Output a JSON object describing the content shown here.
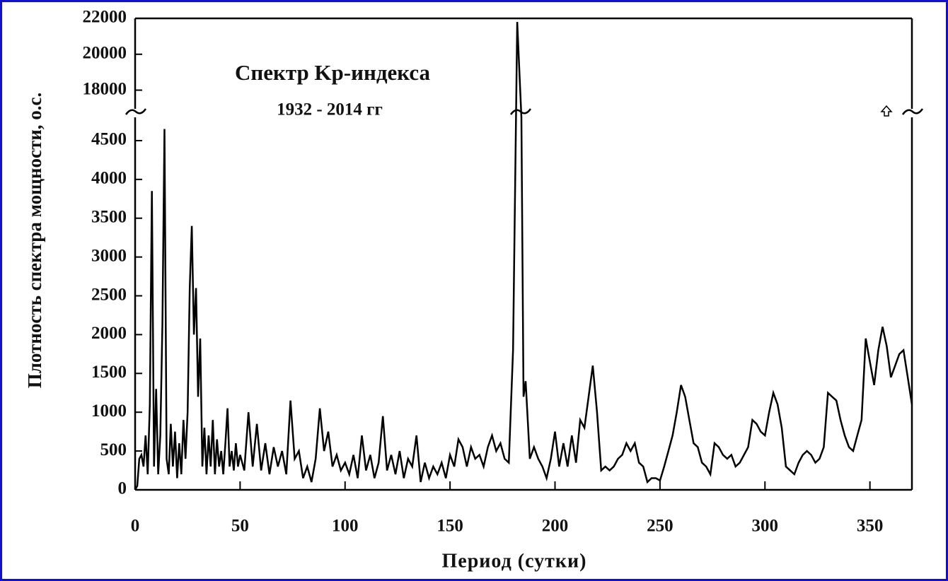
{
  "chart_data": {
    "type": "line",
    "title": "Спектр Kp-индекса",
    "subtitle": "1932 - 2014 гг",
    "x_label": "Период (сутки)",
    "y_label": "Плотность спектра мощности, о.с.",
    "xlim": [
      0,
      370
    ],
    "xticks": [
      0,
      50,
      100,
      150,
      200,
      250,
      300,
      350
    ],
    "ylim": [
      0,
      22000
    ],
    "ybreak": [
      4800,
      16800
    ],
    "yticks": [
      0,
      500,
      1000,
      1500,
      2000,
      2500,
      3000,
      3500,
      4000,
      4500,
      18000,
      20000,
      22000
    ],
    "color": "#000000",
    "x": [
      0,
      1,
      2,
      3,
      4,
      5,
      6,
      7,
      8,
      9,
      10,
      11,
      12,
      13,
      14,
      15,
      16,
      17,
      18,
      19,
      20,
      21,
      22,
      23,
      24,
      25,
      26,
      27,
      28,
      29,
      30,
      31,
      32,
      33,
      34,
      35,
      36,
      37,
      38,
      39,
      40,
      41,
      42,
      43,
      44,
      45,
      46,
      47,
      48,
      49,
      50,
      52,
      54,
      56,
      58,
      60,
      62,
      64,
      66,
      68,
      70,
      72,
      74,
      76,
      78,
      80,
      82,
      84,
      86,
      88,
      90,
      92,
      94,
      96,
      98,
      100,
      102,
      104,
      106,
      108,
      110,
      112,
      114,
      116,
      118,
      120,
      122,
      124,
      126,
      128,
      130,
      132,
      134,
      136,
      138,
      140,
      142,
      144,
      146,
      148,
      150,
      152,
      154,
      156,
      158,
      160,
      162,
      164,
      166,
      168,
      170,
      172,
      174,
      176,
      178,
      180,
      182,
      184,
      185,
      186,
      188,
      190,
      192,
      194,
      196,
      198,
      200,
      202,
      204,
      206,
      208,
      210,
      212,
      214,
      216,
      218,
      220,
      222,
      224,
      226,
      228,
      230,
      232,
      234,
      236,
      238,
      240,
      242,
      244,
      246,
      248,
      250,
      252,
      254,
      256,
      258,
      260,
      262,
      264,
      266,
      268,
      270,
      272,
      274,
      276,
      278,
      280,
      282,
      284,
      286,
      288,
      290,
      292,
      294,
      296,
      298,
      300,
      302,
      304,
      306,
      308,
      310,
      312,
      314,
      316,
      318,
      320,
      322,
      324,
      326,
      328,
      330,
      332,
      334,
      336,
      338,
      340,
      342,
      344,
      346,
      348,
      350,
      352,
      354,
      356,
      358,
      360,
      362,
      364,
      366,
      368,
      370
    ],
    "values": [
      0,
      50,
      400,
      450,
      300,
      700,
      200,
      1100,
      3850,
      300,
      1300,
      200,
      700,
      2150,
      4650,
      400,
      200,
      850,
      300,
      750,
      150,
      600,
      200,
      900,
      400,
      1000,
      2600,
      3400,
      2000,
      2600,
      1200,
      1950,
      300,
      800,
      200,
      700,
      300,
      900,
      200,
      650,
      300,
      500,
      200,
      600,
      1050,
      300,
      500,
      250,
      600,
      300,
      450,
      250,
      1000,
      300,
      850,
      250,
      600,
      200,
      550,
      300,
      500,
      200,
      1150,
      400,
      500,
      150,
      300,
      100,
      400,
      1050,
      500,
      750,
      300,
      450,
      250,
      350,
      200,
      450,
      150,
      700,
      250,
      450,
      150,
      350,
      950,
      250,
      450,
      200,
      500,
      150,
      400,
      300,
      700,
      100,
      350,
      150,
      300,
      200,
      350,
      150,
      450,
      300,
      650,
      550,
      300,
      550,
      400,
      450,
      300,
      550,
      700,
      500,
      600,
      400,
      350,
      1800,
      21800,
      4800,
      1200,
      1400,
      400,
      550,
      400,
      300,
      150,
      400,
      750,
      300,
      600,
      300,
      700,
      350,
      900,
      800,
      1200,
      1600,
      1000,
      250,
      300,
      250,
      300,
      400,
      450,
      600,
      500,
      600,
      350,
      300,
      100,
      150,
      150,
      120,
      300,
      500,
      700,
      1000,
      1350,
      1200,
      900,
      600,
      550,
      350,
      300,
      200,
      600,
      550,
      450,
      400,
      450,
      300,
      350,
      450,
      550,
      900,
      850,
      750,
      700,
      1000,
      1250,
      1100,
      800,
      300,
      250,
      200,
      350,
      450,
      500,
      450,
      350,
      400,
      550,
      1250,
      1200,
      1150,
      900,
      700,
      550,
      500,
      700,
      900,
      1950,
      1650,
      1350,
      1800,
      2100,
      1850,
      1450,
      1600,
      1750,
      1800,
      1450,
      1100
    ]
  }
}
